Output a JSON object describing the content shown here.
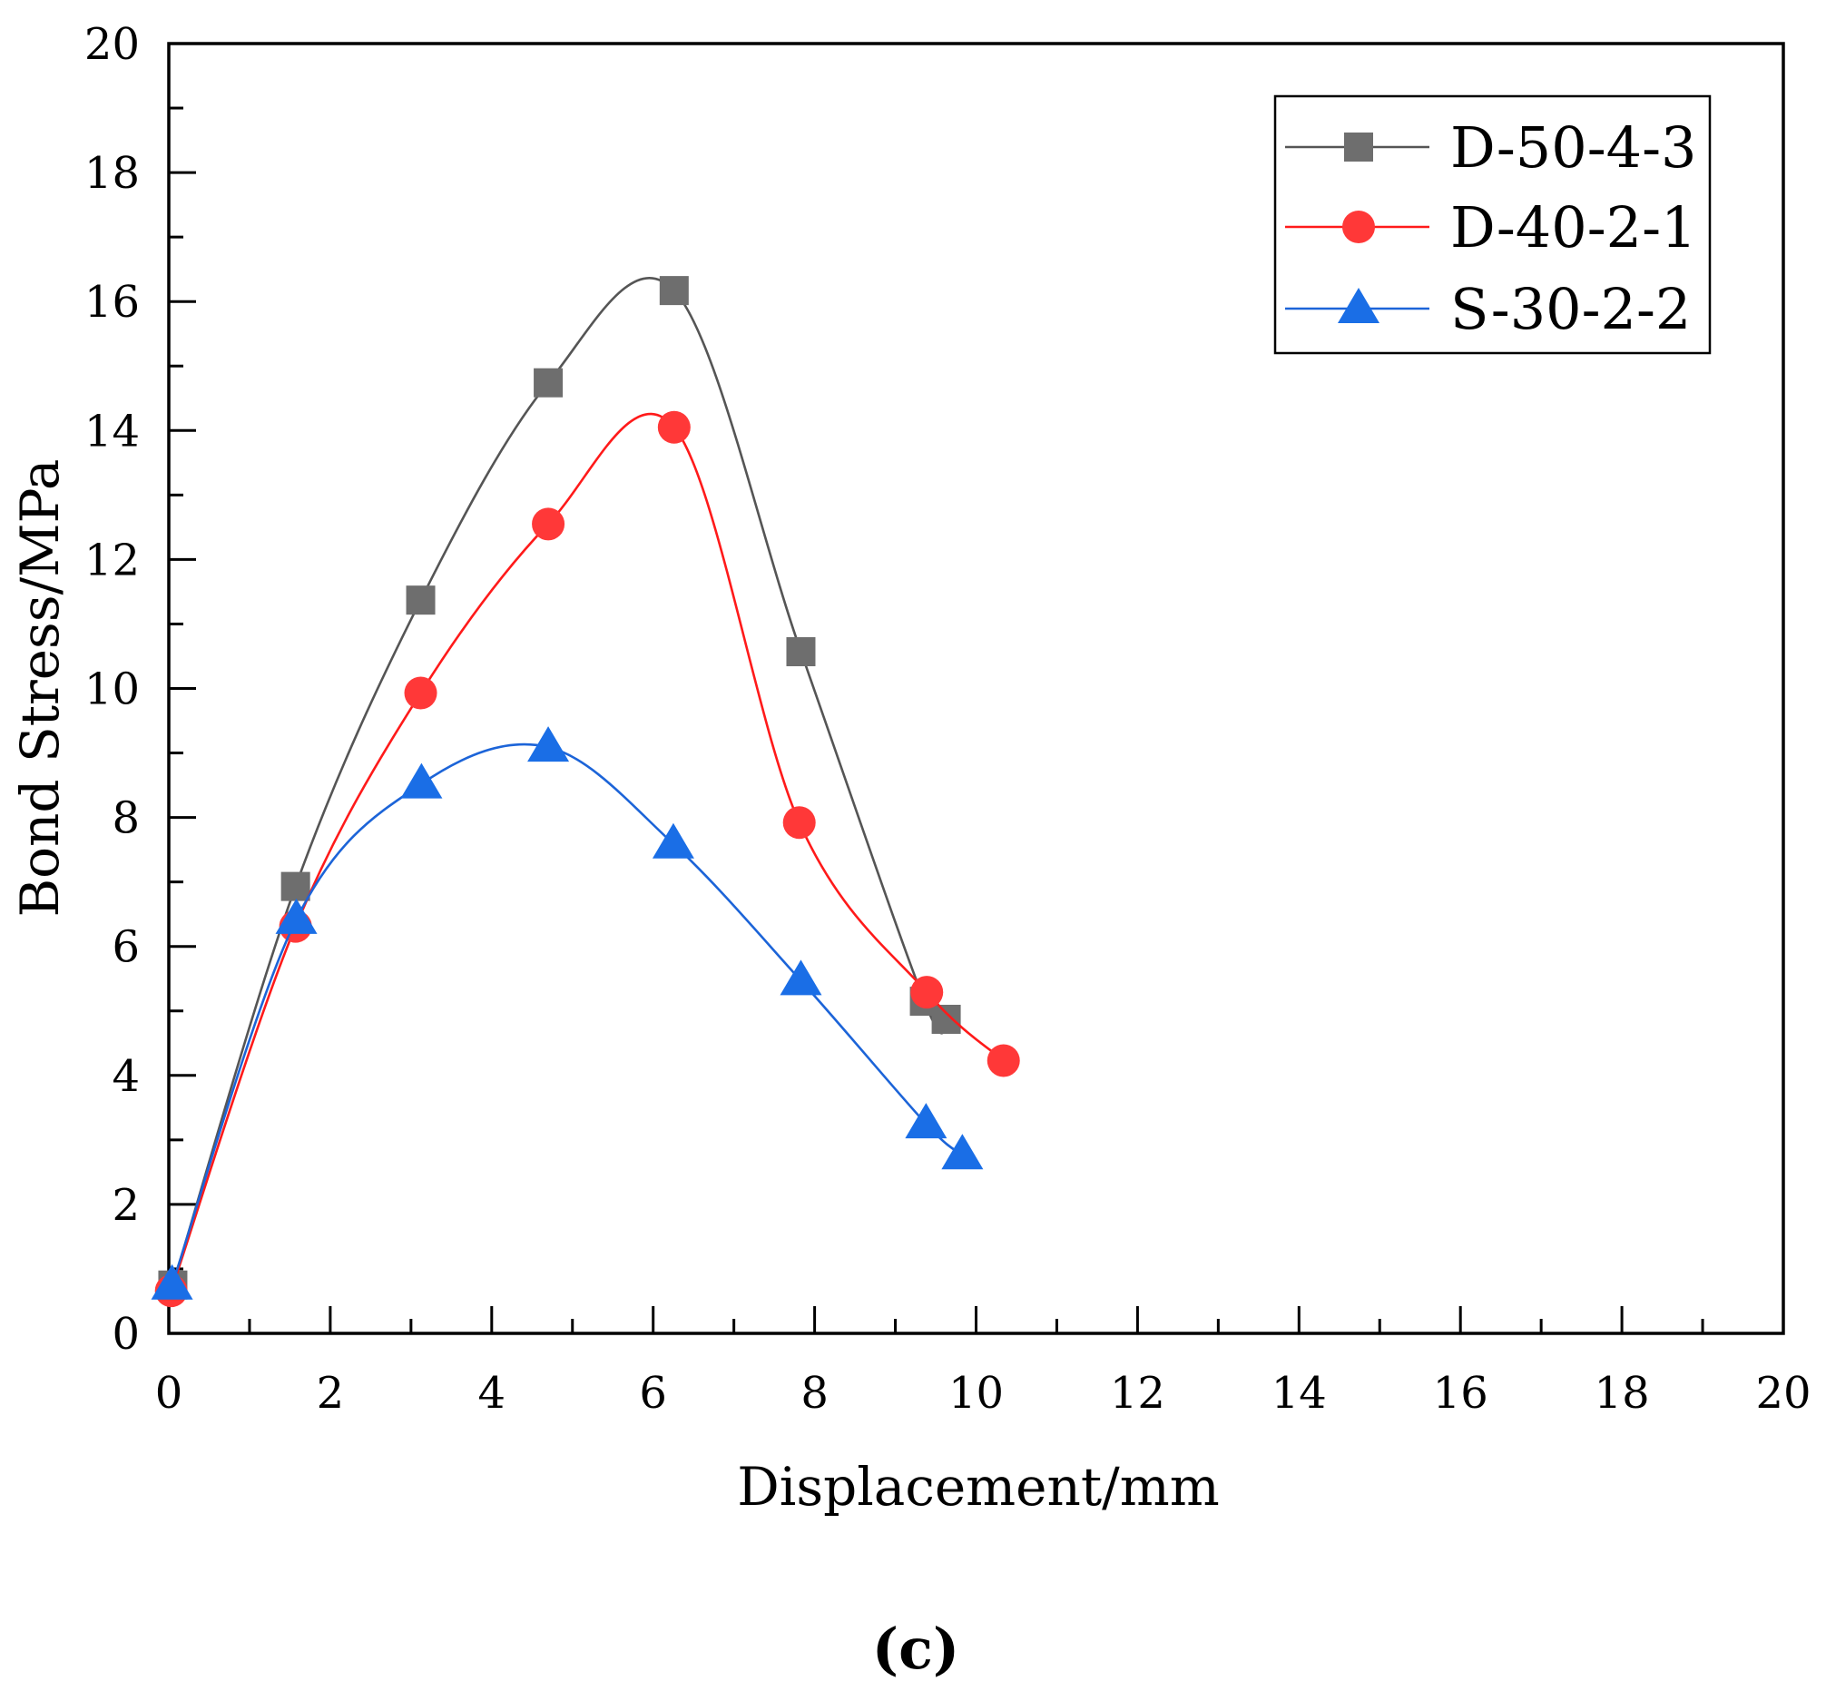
{
  "chart_data": {
    "type": "line",
    "title": "",
    "xlabel": "Displacement/mm",
    "ylabel": "Bond Stress/MPa",
    "xlim": [
      0,
      20
    ],
    "ylim": [
      0,
      20
    ],
    "xticks": [
      0,
      2,
      4,
      6,
      8,
      10,
      12,
      14,
      16,
      18,
      20
    ],
    "xtick_labels": [
      "0",
      "2",
      "4",
      "6",
      "8",
      "10",
      "12",
      "14",
      "16",
      "18",
      "20"
    ],
    "yticks": [
      0,
      2,
      4,
      6,
      8,
      10,
      12,
      14,
      16,
      18,
      20
    ],
    "ytick_labels": [
      "0",
      "2",
      "4",
      "6",
      "8",
      "10",
      "12",
      "14",
      "16",
      "18",
      "20"
    ],
    "grid": false,
    "legend_position": "top-right",
    "series": [
      {
        "name": "D-50-4-3",
        "marker": "square",
        "line_color": "#555555",
        "marker_color": "#6e6e6e",
        "x": [
          0.05,
          1.57,
          3.12,
          4.7,
          6.26,
          7.83,
          9.36,
          9.63
        ],
        "y": [
          0.75,
          6.93,
          11.37,
          14.74,
          16.17,
          10.57,
          5.15,
          4.87
        ]
      },
      {
        "name": "D-40-2-1",
        "marker": "circle",
        "line_color": "#ff1a1a",
        "marker_color": "#ff3838",
        "x": [
          0.03,
          1.57,
          3.12,
          4.7,
          6.26,
          7.81,
          9.39,
          10.34
        ],
        "y": [
          0.66,
          6.31,
          9.93,
          12.55,
          14.05,
          7.92,
          5.29,
          4.23
        ]
      },
      {
        "name": "S-30-2-2",
        "marker": "triangle",
        "line_color": "#1c64d8",
        "marker_color": "#1a6ee6",
        "x": [
          0.04,
          1.58,
          3.13,
          4.7,
          6.25,
          7.83,
          9.38,
          9.83
        ],
        "y": [
          0.75,
          6.42,
          8.52,
          9.09,
          7.59,
          5.47,
          3.25,
          2.77
        ]
      }
    ]
  },
  "panel_label": "(c)"
}
